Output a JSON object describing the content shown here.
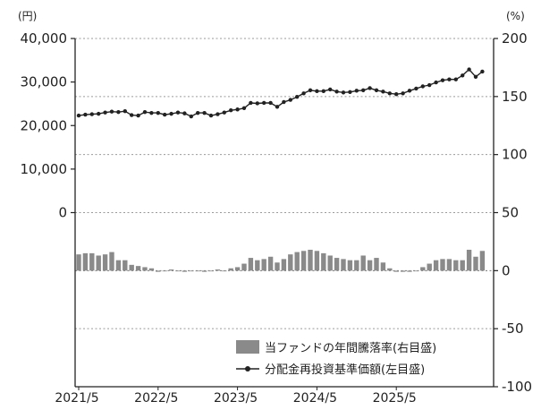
{
  "chart_data": {
    "type": "bar+line",
    "units": {
      "left": "(円)",
      "right": "(%)"
    },
    "left_axis": {
      "ylim": [
        -40000,
        40000
      ],
      "tick_values": [
        0,
        10000,
        20000,
        30000,
        40000
      ],
      "tick_labels": [
        "0",
        "10,000",
        "20,000",
        "30,000",
        "40,000"
      ]
    },
    "right_axis": {
      "ylim": [
        -100,
        200
      ],
      "tick_values": [
        -100,
        -50,
        0,
        50,
        100,
        150,
        200
      ],
      "tick_labels": [
        "-100",
        "-50",
        "0",
        "50",
        "100",
        "150",
        "200"
      ]
    },
    "x_axis": {
      "tick_labels": [
        "2021/5",
        "2022/5",
        "2023/5",
        "2024/5",
        "2025/5"
      ]
    },
    "grid": "dotted-horizontal",
    "legend_position": "bottom-right",
    "series": [
      {
        "name": "当ファンドの年間騰落率(右目盛)",
        "kind": "bar",
        "axis": "right",
        "color": "#8a8a8a",
        "values": [
          14,
          15,
          15,
          13,
          14,
          16,
          9,
          9,
          5,
          4,
          3,
          2,
          -1,
          0,
          1,
          0,
          -1,
          0,
          0,
          -1,
          0,
          1,
          0,
          2,
          3,
          6,
          11,
          9,
          10,
          12,
          7,
          10,
          14,
          16,
          17,
          18,
          17,
          15,
          13,
          11,
          10,
          9,
          9,
          13,
          9,
          11,
          7,
          2,
          -1,
          -1,
          -1,
          0,
          3,
          6,
          9,
          10,
          10,
          9,
          9,
          18,
          12,
          17
        ]
      },
      {
        "name": "分配金再投資基準価額(左目盛)",
        "kind": "line",
        "axis": "left",
        "color": "#222222",
        "values": [
          22300,
          22500,
          22600,
          22700,
          23000,
          23200,
          23100,
          23300,
          22400,
          22300,
          23100,
          22900,
          22900,
          22500,
          22700,
          23000,
          22800,
          22100,
          22900,
          22900,
          22300,
          22600,
          23000,
          23500,
          23700,
          24000,
          25200,
          25100,
          25200,
          25200,
          24300,
          25400,
          25900,
          26600,
          27400,
          28100,
          27900,
          27900,
          28300,
          27800,
          27600,
          27700,
          28000,
          28100,
          28600,
          28100,
          27800,
          27400,
          27200,
          27400,
          28000,
          28500,
          29000,
          29300,
          29900,
          30400,
          30600,
          30600,
          31500,
          32900,
          31200,
          32400
        ]
      }
    ]
  }
}
